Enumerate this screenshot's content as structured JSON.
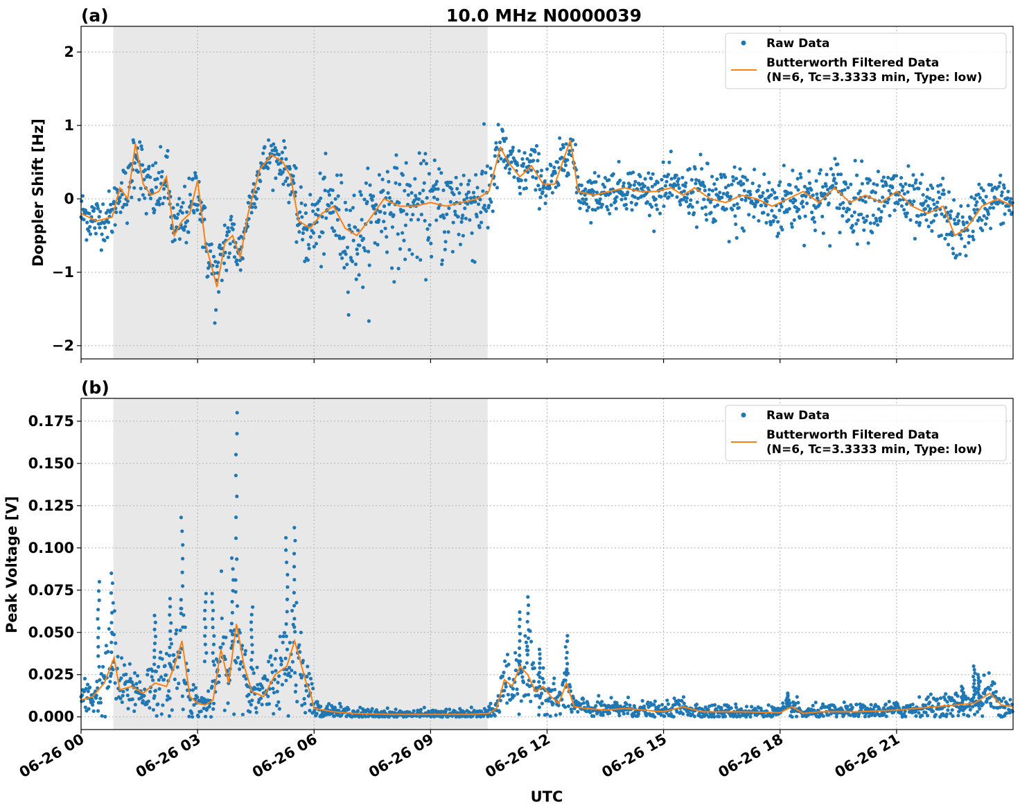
{
  "title": "10.0 MHz N0000039",
  "xlabel": "UTC",
  "x_ticks": [
    "06-26 00",
    "06-26 03",
    "06-26 06",
    "06-26 09",
    "06-26 12",
    "06-26 15",
    "06-26 18",
    "06-26 21"
  ],
  "x_tick_hours": [
    0,
    3,
    6,
    9,
    12,
    15,
    18,
    21
  ],
  "x_range_hours": [
    0,
    24
  ],
  "shaded_interval_hours": [
    0.83,
    10.47
  ],
  "colors": {
    "raw": "#1f77b4",
    "filtered": "#ff7f0e",
    "shade": "#e8e8e8"
  },
  "legend": {
    "raw": "Raw Data",
    "filtered_line1": "Butterworth Filtered Data",
    "filtered_line2": "(N=6, Tc=3.3333 min, Type: low)"
  },
  "chart_data": [
    {
      "type": "scatter",
      "panel": "(a)",
      "ylabel": "Doppler Shift [Hz]",
      "ylim": [
        -2.18,
        2.35
      ],
      "y_ticks": [
        -2,
        -1,
        0,
        1,
        2
      ],
      "y_tick_labels": [
        "−2",
        "−1",
        "0",
        "1",
        "2"
      ],
      "grid": true,
      "legend_position": "top-right",
      "series": [
        {
          "name": "Butterworth Filtered Data",
          "x": [
            0,
            0.4,
            0.8,
            1.0,
            1.2,
            1.4,
            1.6,
            1.8,
            2.0,
            2.2,
            2.4,
            2.6,
            2.8,
            3.0,
            3.2,
            3.35,
            3.5,
            3.7,
            3.9,
            4.1,
            4.3,
            4.6,
            4.9,
            5.2,
            5.4,
            5.6,
            5.9,
            6.2,
            6.5,
            6.8,
            7.1,
            7.4,
            7.8,
            8.2,
            8.6,
            9.0,
            9.4,
            9.8,
            10.2,
            10.5,
            10.8,
            11.0,
            11.3,
            11.6,
            11.9,
            12.2,
            12.5,
            12.6,
            12.8,
            13.2,
            13.6,
            14.0,
            14.4,
            14.8,
            15.2,
            15.5,
            15.8,
            16.2,
            16.6,
            17.0,
            17.4,
            17.8,
            18.2,
            18.6,
            19.0,
            19.4,
            19.8,
            20.2,
            20.6,
            21.0,
            21.4,
            21.8,
            22.2,
            22.5,
            22.8,
            23.2,
            23.6,
            24.0
          ],
          "y": [
            -0.2,
            -0.3,
            -0.25,
            0.15,
            0.0,
            0.75,
            0.2,
            0.05,
            0.1,
            0.3,
            -0.5,
            -0.3,
            -0.2,
            0.25,
            -0.6,
            -0.9,
            -1.2,
            -0.6,
            -0.5,
            -0.8,
            -0.2,
            0.4,
            0.6,
            0.5,
            0.3,
            -0.3,
            -0.4,
            -0.2,
            -0.1,
            -0.4,
            -0.5,
            -0.3,
            0.0,
            -0.1,
            -0.1,
            -0.05,
            -0.1,
            -0.05,
            0.0,
            0.1,
            0.7,
            0.5,
            0.3,
            0.45,
            0.2,
            0.2,
            0.65,
            0.8,
            0.1,
            0.05,
            0.1,
            0.15,
            0.1,
            0.1,
            0.15,
            0.05,
            0.15,
            0.0,
            -0.05,
            0.05,
            0.0,
            -0.1,
            0.0,
            0.1,
            -0.05,
            0.15,
            -0.05,
            0.05,
            -0.05,
            0.1,
            -0.1,
            -0.2,
            -0.1,
            -0.5,
            -0.4,
            -0.1,
            0.0,
            -0.1
          ]
        },
        {
          "name": "Raw Data",
          "spread": [
            [
              0,
              0.4,
              0.35
            ],
            [
              1.0,
              0.4,
              0.35
            ],
            [
              1.4,
              0.6,
              0.55
            ],
            [
              2.0,
              0.5,
              0.45
            ],
            [
              3.0,
              0.5,
              0.45
            ],
            [
              3.5,
              0.55,
              0.6
            ],
            [
              4.4,
              0.35,
              0.3
            ],
            [
              5.2,
              0.3,
              0.3
            ],
            [
              6.0,
              0.6,
              0.75
            ],
            [
              7.0,
              0.7,
              0.9
            ],
            [
              10.5,
              0.65,
              0.9
            ],
            [
              10.8,
              0.4,
              0.35
            ],
            [
              12.5,
              0.4,
              0.35
            ],
            [
              13.0,
              0.35,
              0.3
            ],
            [
              15.5,
              0.35,
              0.3
            ],
            [
              16.0,
              0.5,
              0.6
            ],
            [
              20.0,
              0.5,
              0.55
            ],
            [
              22.5,
              0.45,
              0.45
            ],
            [
              24.0,
              0.35,
              0.3
            ]
          ]
        }
      ]
    },
    {
      "type": "scatter",
      "panel": "(b)",
      "ylabel": "Peak Voltage [V]",
      "ylim": [
        -0.0075,
        0.1885
      ],
      "y_ticks": [
        0.0,
        0.025,
        0.05,
        0.075,
        0.1,
        0.125,
        0.15,
        0.175
      ],
      "y_tick_labels": [
        "0.000",
        "0.025",
        "0.050",
        "0.075",
        "0.100",
        "0.125",
        "0.150",
        "0.175"
      ],
      "grid": true,
      "legend_position": "top-right",
      "series": [
        {
          "name": "Butterworth Filtered Data",
          "x": [
            0,
            0.3,
            0.6,
            0.85,
            1.0,
            1.3,
            1.6,
            1.9,
            2.2,
            2.4,
            2.6,
            2.8,
            3.0,
            3.2,
            3.4,
            3.6,
            3.8,
            4.0,
            4.2,
            4.4,
            4.7,
            5.0,
            5.3,
            5.5,
            5.8,
            5.9,
            6.0,
            6.5,
            7.0,
            8.0,
            9.0,
            10.0,
            10.5,
            10.7,
            10.9,
            11.1,
            11.3,
            11.5,
            11.7,
            11.9,
            12.1,
            12.3,
            12.5,
            12.7,
            13.0,
            13.5,
            14.0,
            15.0,
            15.5,
            16.0,
            17.0,
            18.0,
            18.3,
            18.6,
            19.0,
            20.0,
            21.0,
            21.5,
            22.0,
            22.5,
            23.0,
            23.4,
            23.7,
            24.0
          ],
          "y": [
            0.01,
            0.012,
            0.02,
            0.035,
            0.016,
            0.018,
            0.014,
            0.02,
            0.018,
            0.03,
            0.045,
            0.012,
            0.008,
            0.007,
            0.01,
            0.04,
            0.02,
            0.055,
            0.03,
            0.015,
            0.012,
            0.025,
            0.03,
            0.045,
            0.02,
            0.015,
            0.005,
            0.003,
            0.002,
            0.0015,
            0.0015,
            0.0015,
            0.002,
            0.005,
            0.022,
            0.018,
            0.03,
            0.025,
            0.015,
            0.018,
            0.012,
            0.008,
            0.02,
            0.006,
            0.005,
            0.004,
            0.005,
            0.003,
            0.006,
            0.003,
            0.003,
            0.0025,
            0.006,
            0.002,
            0.003,
            0.003,
            0.004,
            0.005,
            0.006,
            0.007,
            0.008,
            0.014,
            0.007,
            0.006
          ]
        },
        {
          "name": "Raw Data",
          "peaks": [
            [
              0.8,
              0.085
            ],
            [
              0.45,
              0.08
            ],
            [
              1.9,
              0.06
            ],
            [
              2.3,
              0.07
            ],
            [
              2.6,
              0.118
            ],
            [
              3.2,
              0.073
            ],
            [
              3.4,
              0.073
            ],
            [
              3.9,
              0.094
            ],
            [
              4.0,
              0.18
            ],
            [
              4.4,
              0.065
            ],
            [
              5.3,
              0.106
            ],
            [
              5.5,
              0.112
            ],
            [
              11.3,
              0.062
            ],
            [
              11.5,
              0.071
            ],
            [
              11.8,
              0.04
            ],
            [
              12.5,
              0.048
            ],
            [
              18.2,
              0.014
            ],
            [
              22.7,
              0.018
            ],
            [
              23.0,
              0.03
            ],
            [
              23.1,
              0.025
            ]
          ]
        }
      ]
    }
  ]
}
